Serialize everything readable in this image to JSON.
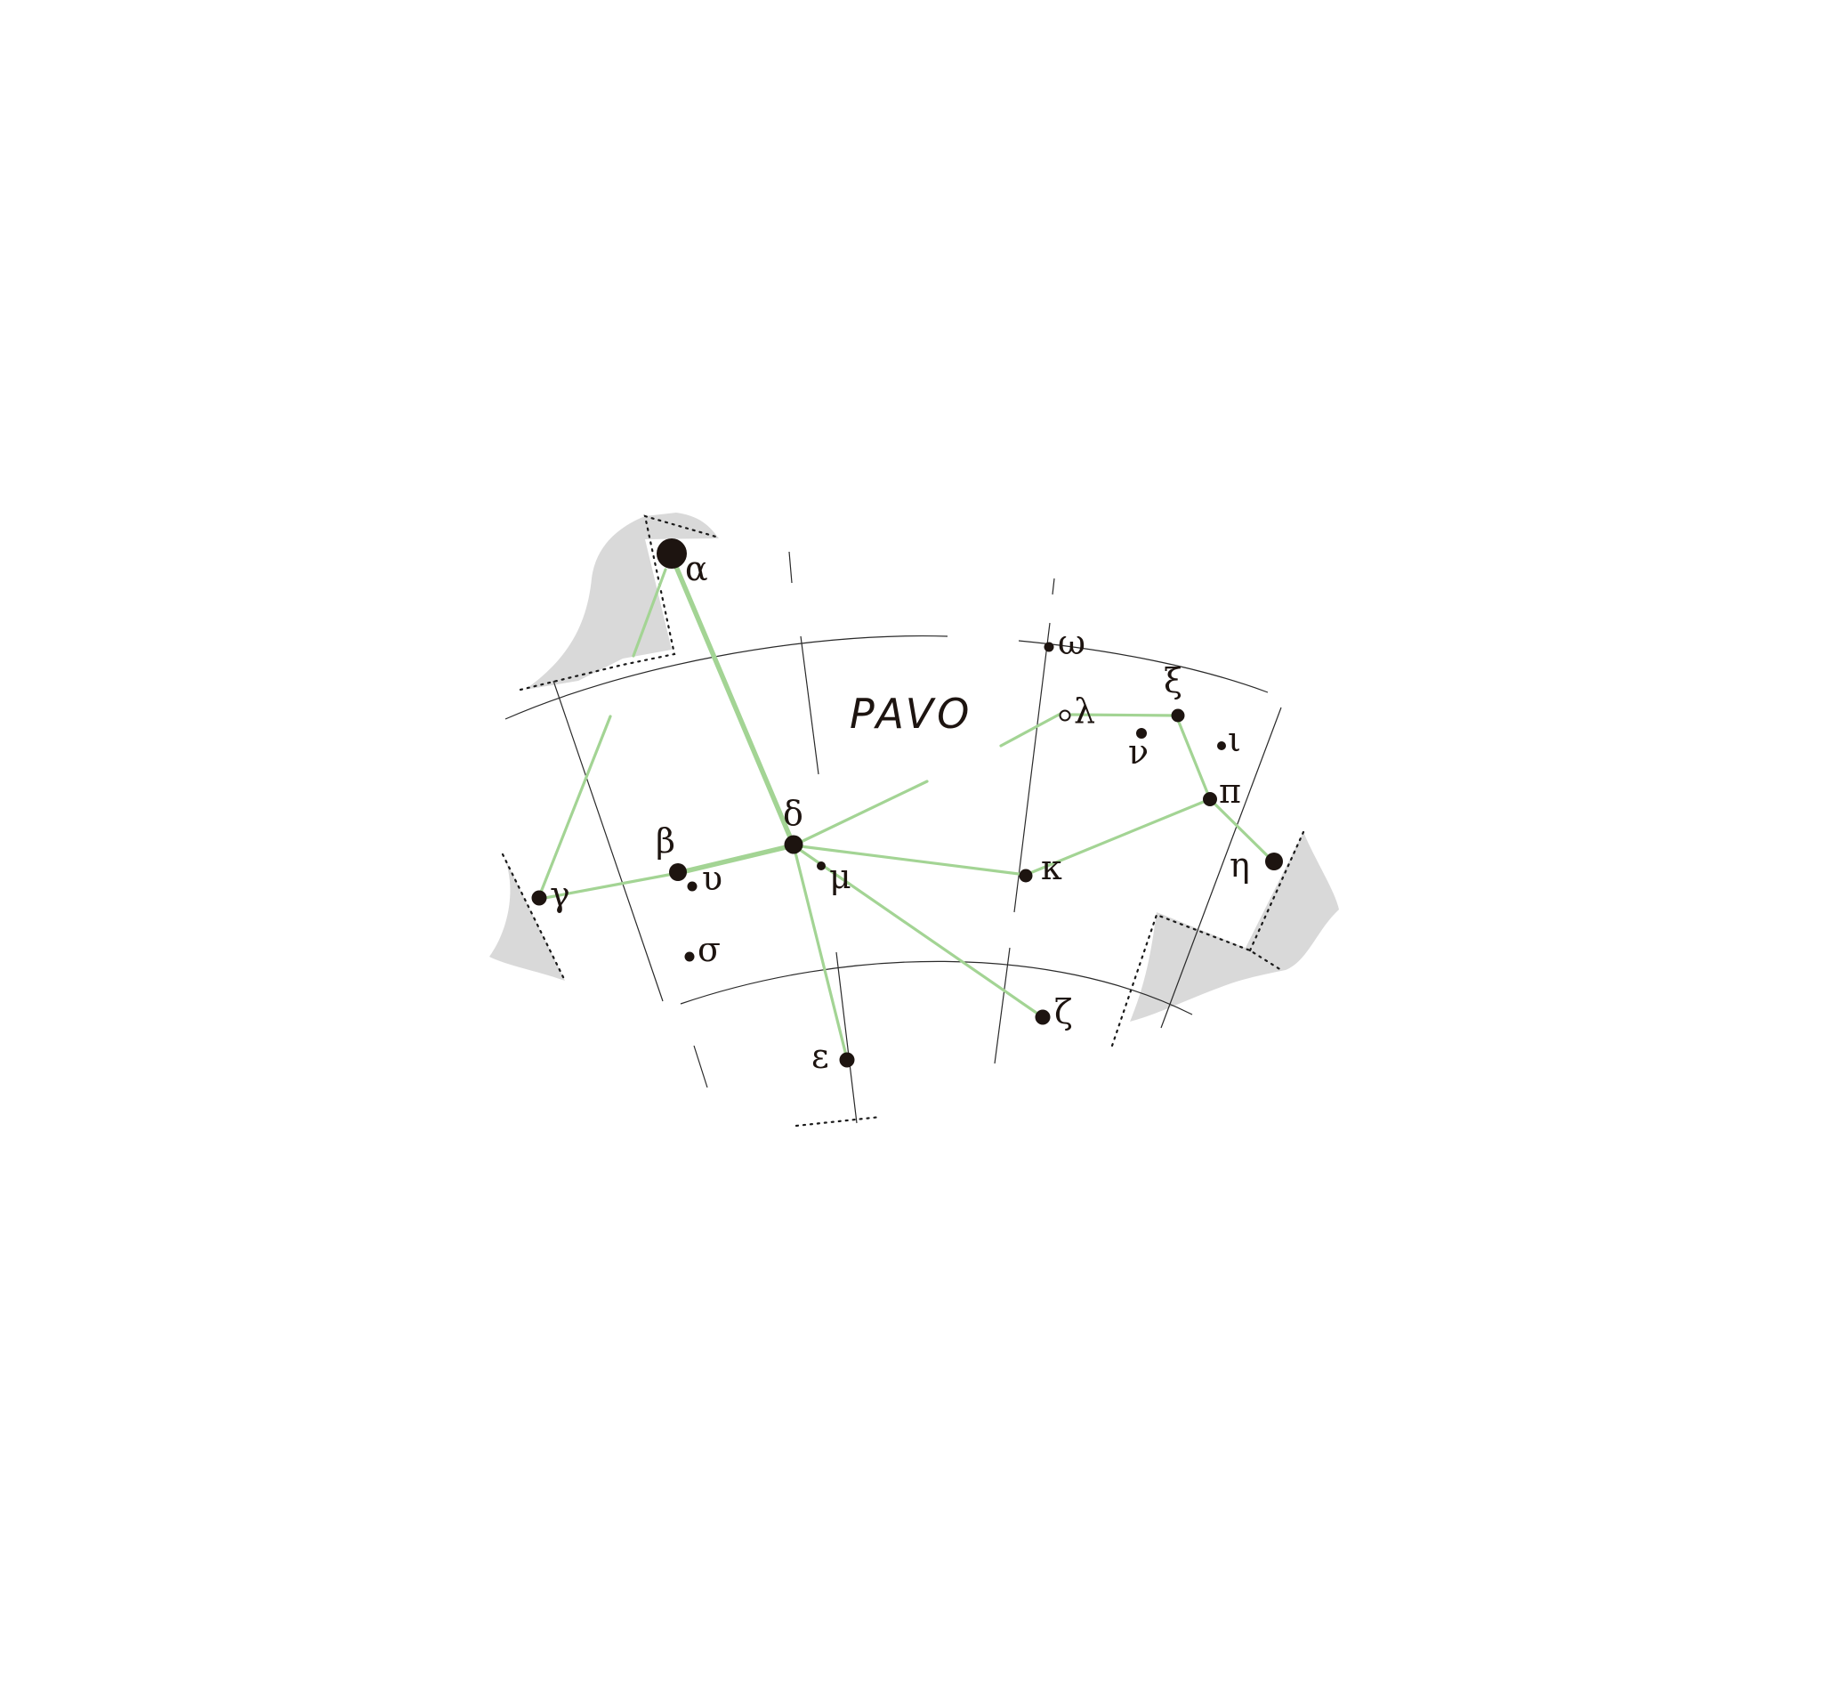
{
  "constellation": {
    "name": "PAVO"
  },
  "stars": [
    {
      "id": "alpha",
      "label": "α",
      "magnitude_class": "1"
    },
    {
      "id": "beta",
      "label": "β",
      "magnitude_class": "3"
    },
    {
      "id": "gamma",
      "label": "γ",
      "magnitude_class": "4"
    },
    {
      "id": "delta",
      "label": "δ",
      "magnitude_class": "3"
    },
    {
      "id": "epsilon",
      "label": "ε",
      "magnitude_class": "4"
    },
    {
      "id": "zeta",
      "label": "ζ",
      "magnitude_class": "4"
    },
    {
      "id": "eta",
      "label": "η",
      "magnitude_class": "3"
    },
    {
      "id": "iota",
      "label": "ι",
      "magnitude_class": "5"
    },
    {
      "id": "kappa",
      "label": "κ",
      "magnitude_class": "4"
    },
    {
      "id": "lambda",
      "label": "λ",
      "magnitude_class": "variable"
    },
    {
      "id": "mu",
      "label": "μ",
      "magnitude_class": "5"
    },
    {
      "id": "nu",
      "label": "ν",
      "magnitude_class": "5"
    },
    {
      "id": "xi",
      "label": "ξ",
      "magnitude_class": "4"
    },
    {
      "id": "pi",
      "label": "π",
      "magnitude_class": "4"
    },
    {
      "id": "sigma",
      "label": "σ",
      "magnitude_class": "5"
    },
    {
      "id": "upsilon",
      "label": "υ",
      "magnitude_class": "5"
    },
    {
      "id": "omega",
      "label": "ω",
      "magnitude_class": "5"
    }
  ],
  "colors": {
    "figure_lines": "#a3d494",
    "stars": "#1d1410",
    "milky_way": "#d9d9d9",
    "grid": "#2a2a2a"
  }
}
